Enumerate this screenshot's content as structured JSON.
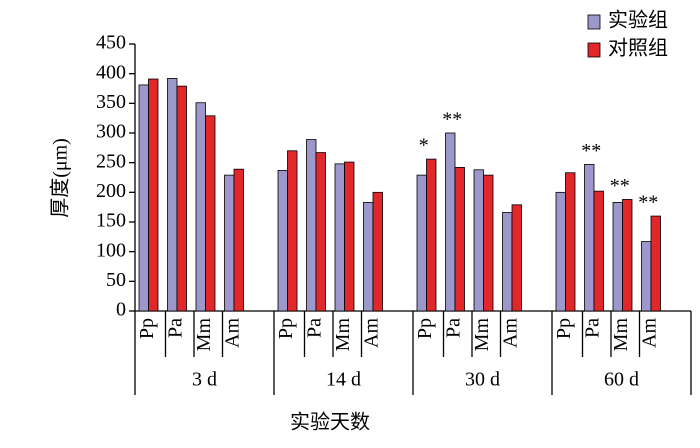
{
  "chart_data": {
    "type": "bar",
    "y_label": "厚度(μm)",
    "x_label": "实验天数",
    "groups": [
      "3 d",
      "14 d",
      "30 d",
      "60 d"
    ],
    "categories": [
      "Pp",
      "Pa",
      "Mm",
      "Am",
      "Pp",
      "Pa",
      "Mm",
      "Am",
      "Pp",
      "Pa",
      "Mm",
      "Am",
      "Pp",
      "Pa",
      "Mm",
      "Am"
    ],
    "series": [
      {
        "name": "实验组",
        "color": "#9d98cc",
        "values": [
          381,
          392,
          351,
          229,
          237,
          289,
          248,
          183,
          229,
          300,
          238,
          166,
          200,
          247,
          183,
          117
        ]
      },
      {
        "name": "对照组",
        "color": "#e2272b",
        "values": [
          391,
          379,
          329,
          239,
          270,
          267,
          251,
          200,
          256,
          242,
          229,
          179,
          233,
          202,
          188,
          160
        ]
      }
    ],
    "annotations": [
      null,
      null,
      null,
      null,
      null,
      null,
      null,
      null,
      "*",
      "**",
      null,
      null,
      null,
      "**",
      "**",
      "**"
    ],
    "ylim": [
      0,
      450
    ],
    "yticks": [
      0,
      50,
      100,
      150,
      200,
      250,
      300,
      350,
      400,
      450
    ],
    "legend": "top-right"
  }
}
